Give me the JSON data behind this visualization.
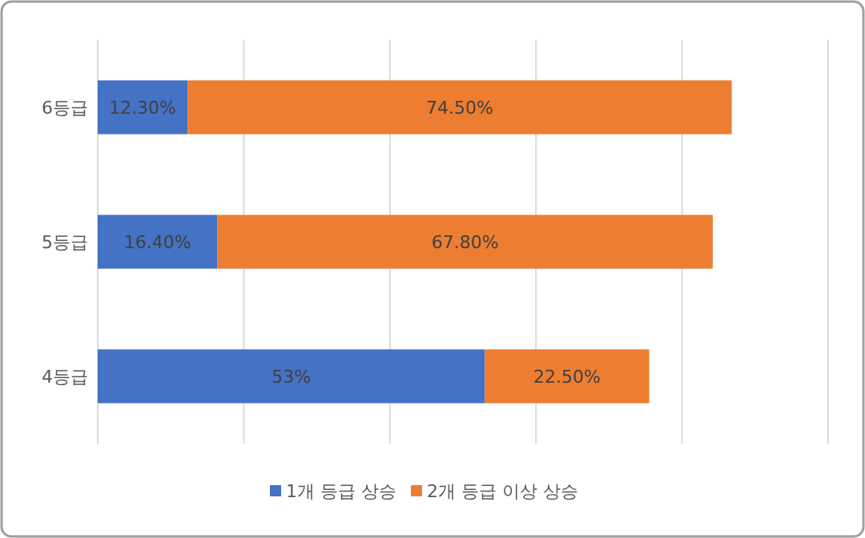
{
  "chart_data": {
    "type": "bar",
    "orientation": "horizontal",
    "stacked": true,
    "categories": [
      "6등급",
      "5등급",
      "4등급"
    ],
    "series": [
      {
        "name": "1개 등급 상승",
        "color": "#4472c4",
        "values": [
          12.3,
          16.4,
          53
        ],
        "value_labels": [
          "12.30%",
          "16.40%",
          "53%"
        ]
      },
      {
        "name": "2개 등급 이상 상승",
        "color": "#ed7d31",
        "values": [
          74.5,
          67.8,
          22.5
        ],
        "value_labels": [
          "74.50%",
          "67.80%",
          "22.50%"
        ]
      }
    ],
    "xlim": [
      0,
      100
    ],
    "xticks": [
      {
        "value": 0,
        "label": null
      },
      {
        "value": 20,
        "label": null
      },
      {
        "value": 40,
        "label": null
      },
      {
        "value": 60,
        "label": null
      },
      {
        "value": 80,
        "label": null
      },
      {
        "value": 100,
        "label": null
      }
    ],
    "grid": "x",
    "legend": "bottom",
    "tick_labels": "y"
  }
}
